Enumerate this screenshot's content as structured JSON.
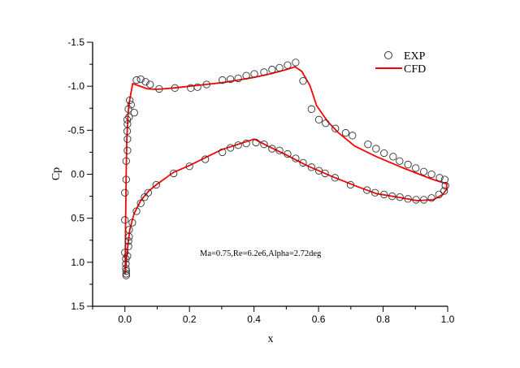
{
  "chart_data": {
    "type": "scatter",
    "title": "",
    "xlabel": "x",
    "ylabel": "Cp",
    "xlim": [
      -0.1,
      1.0
    ],
    "ylim": [
      -1.5,
      1.5
    ],
    "y_inverted": true,
    "grid": false,
    "legend_placement": "top-right",
    "x_ticks": [
      0.0,
      0.2,
      0.4,
      0.6,
      0.8,
      1.0
    ],
    "x_tick_labels": [
      "0.0",
      "0.2",
      "0.4",
      "0.6",
      "0.8",
      "1.0"
    ],
    "y_ticks": [
      -1.5,
      -1.0,
      -0.5,
      0.0,
      0.5,
      1.0,
      1.5
    ],
    "y_tick_labels": [
      "-1.5",
      "-1.0",
      "-0.5",
      "0.0",
      "0.5",
      "1.0",
      "1.5"
    ],
    "annotation": "Ma=0.75,Re=6.2e6,Alpha=2.72deg",
    "series": [
      {
        "name": "EXP",
        "kind": "scatter",
        "marker": "open-circle",
        "color": "#333333",
        "points": [
          [
            0.036,
            -1.07
          ],
          [
            0.049,
            -1.08
          ],
          [
            0.064,
            -1.05
          ],
          [
            0.078,
            -1.02
          ],
          [
            0.106,
            -0.97
          ],
          [
            0.155,
            -0.98
          ],
          [
            0.204,
            -0.98
          ],
          [
            0.225,
            -0.99
          ],
          [
            0.253,
            -1.02
          ],
          [
            0.302,
            -1.07
          ],
          [
            0.327,
            -1.08
          ],
          [
            0.351,
            -1.09
          ],
          [
            0.376,
            -1.12
          ],
          [
            0.401,
            -1.14
          ],
          [
            0.431,
            -1.16
          ],
          [
            0.456,
            -1.19
          ],
          [
            0.479,
            -1.21
          ],
          [
            0.504,
            -1.24
          ],
          [
            0.529,
            -1.27
          ],
          [
            0.552,
            -1.06
          ],
          [
            0.578,
            -0.74
          ],
          [
            0.601,
            -0.62
          ],
          [
            0.622,
            -0.58
          ],
          [
            0.652,
            -0.52
          ],
          [
            0.684,
            -0.47
          ],
          [
            0.705,
            -0.44
          ],
          [
            0.753,
            -0.34
          ],
          [
            0.778,
            -0.29
          ],
          [
            0.803,
            -0.24
          ],
          [
            0.831,
            -0.2
          ],
          [
            0.851,
            -0.15
          ],
          [
            0.877,
            -0.11
          ],
          [
            0.901,
            -0.07
          ],
          [
            0.926,
            -0.03
          ],
          [
            0.95,
            0.0
          ],
          [
            0.975,
            0.04
          ],
          [
            0.991,
            0.06
          ],
          [
            0.015,
            -0.84
          ],
          [
            0.019,
            -0.79
          ],
          [
            0.029,
            -0.7
          ],
          [
            0.011,
            -0.74
          ],
          [
            0.013,
            -0.65
          ],
          [
            0.007,
            -0.62
          ],
          [
            0.008,
            -0.57
          ],
          [
            0.007,
            -0.49
          ],
          [
            0.008,
            -0.4
          ],
          [
            0.008,
            -0.27
          ],
          [
            0.004,
            -0.15
          ],
          [
            0.004,
            0.06
          ],
          [
            0.0,
            0.21
          ],
          [
            0.0,
            0.52
          ],
          [
            0.0,
            0.89
          ],
          [
            0.003,
            0.96
          ],
          [
            0.003,
            1.02
          ],
          [
            0.003,
            1.07
          ],
          [
            0.004,
            1.1
          ],
          [
            0.004,
            1.13
          ],
          [
            0.004,
            1.15
          ],
          [
            0.008,
            0.93
          ],
          [
            0.011,
            0.82
          ],
          [
            0.011,
            0.76
          ],
          [
            0.013,
            0.71
          ],
          [
            0.013,
            0.63
          ],
          [
            0.023,
            0.55
          ],
          [
            0.036,
            0.42
          ],
          [
            0.049,
            0.33
          ],
          [
            0.061,
            0.26
          ],
          [
            0.072,
            0.21
          ],
          [
            0.097,
            0.12
          ],
          [
            0.151,
            -0.01
          ],
          [
            0.2,
            -0.09
          ],
          [
            0.249,
            -0.17
          ],
          [
            0.302,
            -0.25
          ],
          [
            0.327,
            -0.3
          ],
          [
            0.351,
            -0.33
          ],
          [
            0.376,
            -0.35
          ],
          [
            0.406,
            -0.36
          ],
          [
            0.431,
            -0.34
          ],
          [
            0.456,
            -0.29
          ],
          [
            0.479,
            -0.27
          ],
          [
            0.504,
            -0.23
          ],
          [
            0.529,
            -0.18
          ],
          [
            0.552,
            -0.13
          ],
          [
            0.578,
            -0.08
          ],
          [
            0.601,
            -0.04
          ],
          [
            0.62,
            -0.01
          ],
          [
            0.651,
            0.04
          ],
          [
            0.699,
            0.12
          ],
          [
            0.75,
            0.18
          ],
          [
            0.775,
            0.21
          ],
          [
            0.803,
            0.23
          ],
          [
            0.828,
            0.25
          ],
          [
            0.852,
            0.26
          ],
          [
            0.877,
            0.28
          ],
          [
            0.902,
            0.29
          ],
          [
            0.926,
            0.29
          ],
          [
            0.95,
            0.27
          ],
          [
            0.973,
            0.23
          ],
          [
            0.989,
            0.19
          ],
          [
            0.993,
            0.13
          ]
        ]
      },
      {
        "name": "CFD",
        "kind": "line",
        "color": "#ff0000",
        "points": [
          [
            0.001,
            1.14
          ],
          [
            0.002,
            0.6
          ],
          [
            0.004,
            0.0
          ],
          [
            0.006,
            -0.4
          ],
          [
            0.01,
            -0.7
          ],
          [
            0.015,
            -0.85
          ],
          [
            0.024,
            -1.03
          ],
          [
            0.04,
            -1.01
          ],
          [
            0.07,
            -0.97
          ],
          [
            0.1,
            -0.965
          ],
          [
            0.15,
            -0.98
          ],
          [
            0.2,
            -1.0
          ],
          [
            0.25,
            -1.02
          ],
          [
            0.3,
            -1.04
          ],
          [
            0.35,
            -1.07
          ],
          [
            0.4,
            -1.1
          ],
          [
            0.45,
            -1.14
          ],
          [
            0.5,
            -1.19
          ],
          [
            0.527,
            -1.22
          ],
          [
            0.548,
            -1.17
          ],
          [
            0.573,
            -1.01
          ],
          [
            0.594,
            -0.78
          ],
          [
            0.628,
            -0.6
          ],
          [
            0.662,
            -0.47
          ],
          [
            0.712,
            -0.32
          ],
          [
            0.779,
            -0.2
          ],
          [
            0.863,
            -0.07
          ],
          [
            0.947,
            0.05
          ],
          [
            0.997,
            0.11
          ],
          [
            0.997,
            0.17
          ],
          [
            0.985,
            0.23
          ],
          [
            0.955,
            0.29
          ],
          [
            0.905,
            0.3
          ],
          [
            0.846,
            0.26
          ],
          [
            0.779,
            0.22
          ],
          [
            0.72,
            0.14
          ],
          [
            0.645,
            0.03
          ],
          [
            0.569,
            -0.09
          ],
          [
            0.494,
            -0.23
          ],
          [
            0.443,
            -0.32
          ],
          [
            0.401,
            -0.4
          ],
          [
            0.35,
            -0.34
          ],
          [
            0.3,
            -0.28
          ],
          [
            0.25,
            -0.19
          ],
          [
            0.2,
            -0.1
          ],
          [
            0.15,
            -0.02
          ],
          [
            0.097,
            0.12
          ],
          [
            0.074,
            0.19
          ],
          [
            0.049,
            0.3
          ],
          [
            0.028,
            0.45
          ],
          [
            0.015,
            0.63
          ],
          [
            0.007,
            0.88
          ],
          [
            0.001,
            1.14
          ]
        ]
      }
    ]
  }
}
